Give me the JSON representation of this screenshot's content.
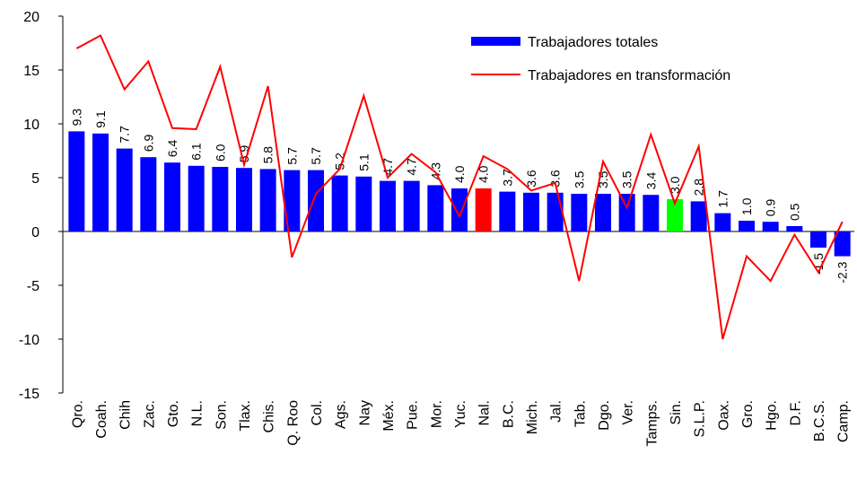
{
  "chart_data": {
    "type": "bar",
    "categories": [
      "Qro.",
      "Coah.",
      "Chih",
      "Zac.",
      "Gto.",
      "N.L.",
      "Son.",
      "Tlax.",
      "Chis.",
      "Q. Roo",
      "Col.",
      "Ags.",
      "Nay",
      "Méx.",
      "Pue.",
      "Mor.",
      "Yuc.",
      "Nal.",
      "B.C.",
      "Mich.",
      "Jal.",
      "Tab.",
      "Dgo.",
      "Ver.",
      "Tamps.",
      "Sin.",
      "S.L.P.",
      "Oax.",
      "Gro.",
      "Hgo.",
      "D.F.",
      "B.C.S.",
      "Camp."
    ],
    "series": [
      {
        "name": "Trabajadores totales",
        "type": "bar",
        "color": "#0000ff",
        "colors": [
          "#0000ff",
          "#0000ff",
          "#0000ff",
          "#0000ff",
          "#0000ff",
          "#0000ff",
          "#0000ff",
          "#0000ff",
          "#0000ff",
          "#0000ff",
          "#0000ff",
          "#0000ff",
          "#0000ff",
          "#0000ff",
          "#0000ff",
          "#0000ff",
          "#0000ff",
          "#ff0000",
          "#0000ff",
          "#0000ff",
          "#0000ff",
          "#0000ff",
          "#0000ff",
          "#0000ff",
          "#0000ff",
          "#00ff00",
          "#0000ff",
          "#0000ff",
          "#0000ff",
          "#0000ff",
          "#0000ff",
          "#0000ff",
          "#0000ff"
        ],
        "values": [
          9.3,
          9.1,
          7.7,
          6.9,
          6.4,
          6.1,
          6.0,
          5.9,
          5.8,
          5.7,
          5.7,
          5.2,
          5.1,
          4.7,
          4.7,
          4.3,
          4.0,
          4.0,
          3.7,
          3.6,
          3.6,
          3.5,
          3.5,
          3.5,
          3.4,
          3.0,
          2.8,
          1.7,
          1.0,
          0.9,
          0.5,
          -1.5,
          -2.3
        ],
        "value_labels": [
          "9.3",
          "9.1",
          "7.7",
          "6.9",
          "6.4",
          "6.1",
          "6.0",
          "5.9",
          "5.8",
          "5.7",
          "5.7",
          "5.2",
          "5.1",
          "4.7",
          "4.7",
          "4.3",
          "4.0",
          "4.0",
          "3.7",
          "3.6",
          "3.6",
          "3.5",
          "3.5",
          "3.5",
          "3.4",
          "3.0",
          "2.8",
          "1.7",
          "1.0",
          "0.9",
          "0.5",
          "-1.5",
          "-2.3"
        ],
        "negative_label_color": "#ff0000"
      },
      {
        "name": "Trabajadores en transformación",
        "type": "line",
        "color": "#ff0000",
        "values": [
          17.0,
          18.2,
          13.2,
          15.8,
          9.6,
          9.5,
          15.3,
          6.2,
          13.5,
          -2.4,
          3.5,
          5.8,
          12.6,
          5.0,
          7.2,
          5.5,
          1.4,
          7.0,
          5.8,
          3.8,
          4.5,
          -4.6,
          6.5,
          2.2,
          9.0,
          2.6,
          7.9,
          -10.0,
          -2.3,
          -4.6,
          -0.3,
          -3.8,
          0.9
        ]
      }
    ],
    "ylim": [
      -15,
      20
    ],
    "yticks": [
      -15,
      -10,
      -5,
      0,
      5,
      10,
      15,
      20
    ],
    "legend": "top-right"
  }
}
